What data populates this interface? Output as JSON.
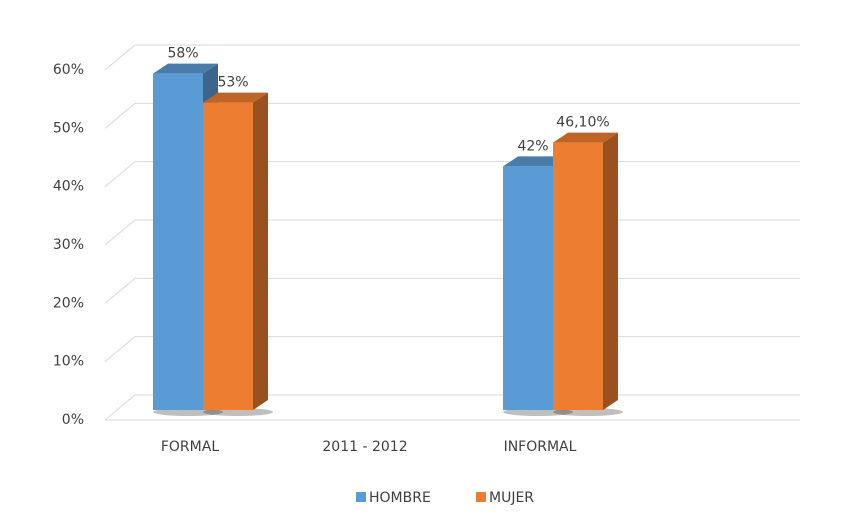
{
  "chart_data": {
    "type": "bar3d",
    "categories": [
      "FORMAL",
      "2011 - 2012",
      "INFORMAL"
    ],
    "series": [
      {
        "name": "HOMBRE",
        "color": "#5b9bd5",
        "values": [
          58,
          null,
          42
        ],
        "value_labels": [
          "58%",
          null,
          "42%"
        ]
      },
      {
        "name": "MUJER",
        "color": "#ed7d31",
        "values": [
          53,
          null,
          46.1
        ],
        "value_labels": [
          "53%",
          null,
          "46,10%"
        ]
      }
    ],
    "ylim": [
      0,
      60
    ],
    "yticks": [
      {
        "value": 0,
        "label": "0%"
      },
      {
        "value": 10,
        "label": "10%"
      },
      {
        "value": 20,
        "label": "20%"
      },
      {
        "value": 30,
        "label": "30%"
      },
      {
        "value": 40,
        "label": "40%"
      },
      {
        "value": 50,
        "label": "50%"
      },
      {
        "value": 60,
        "label": "60%"
      }
    ],
    "grid": true,
    "legend": "bottom"
  }
}
